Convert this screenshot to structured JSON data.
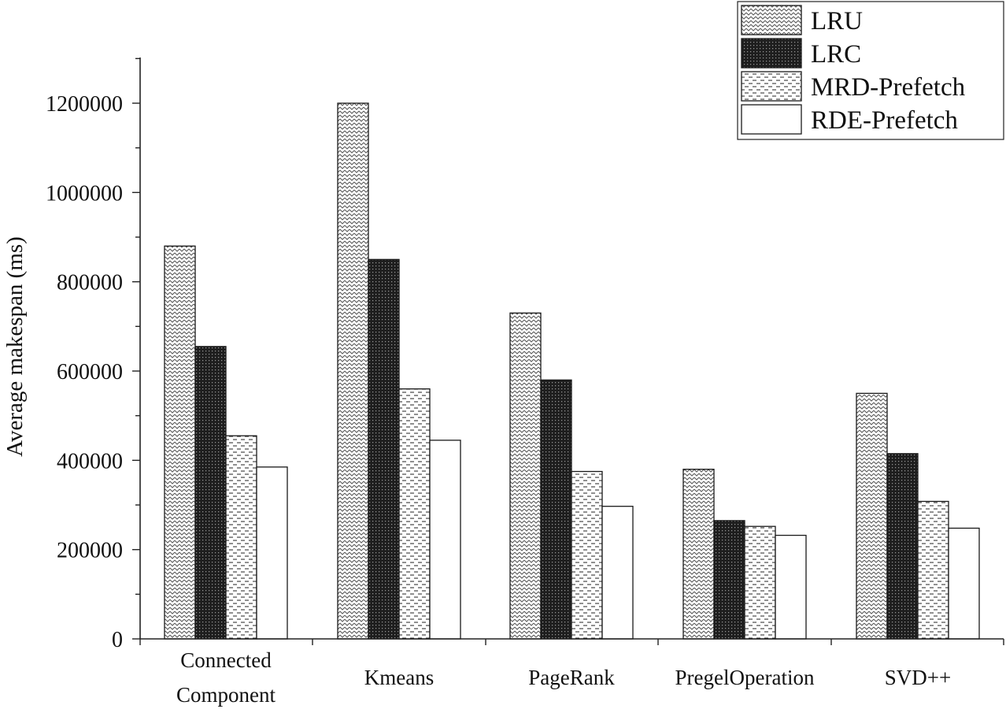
{
  "chart_data": {
    "type": "bar",
    "title": "",
    "xlabel": "",
    "ylabel": "Average makespan (ms)",
    "ylim": [
      0,
      1300000
    ],
    "yticks": [
      "0",
      "200000",
      "400000",
      "600000",
      "800000",
      "1000000",
      "1200000"
    ],
    "categories": [
      [
        "Connected",
        "Component"
      ],
      [
        "Kmeans"
      ],
      [
        "PageRank"
      ],
      [
        "PregelOperation"
      ],
      [
        "SVD++"
      ]
    ],
    "series": [
      {
        "name": "LRU",
        "pattern": "wave",
        "values": [
          880000,
          1200000,
          730000,
          380000,
          550000
        ]
      },
      {
        "name": "LRC",
        "pattern": "dense-dots",
        "values": [
          655000,
          850000,
          580000,
          265000,
          415000
        ]
      },
      {
        "name": "MRD-Prefetch",
        "pattern": "dashes",
        "values": [
          455000,
          560000,
          375000,
          252000,
          308000
        ]
      },
      {
        "name": "RDE-Prefetch",
        "pattern": "none",
        "values": [
          385000,
          445000,
          297000,
          232000,
          248000
        ]
      }
    ],
    "legend": "top-right",
    "grid": false
  }
}
